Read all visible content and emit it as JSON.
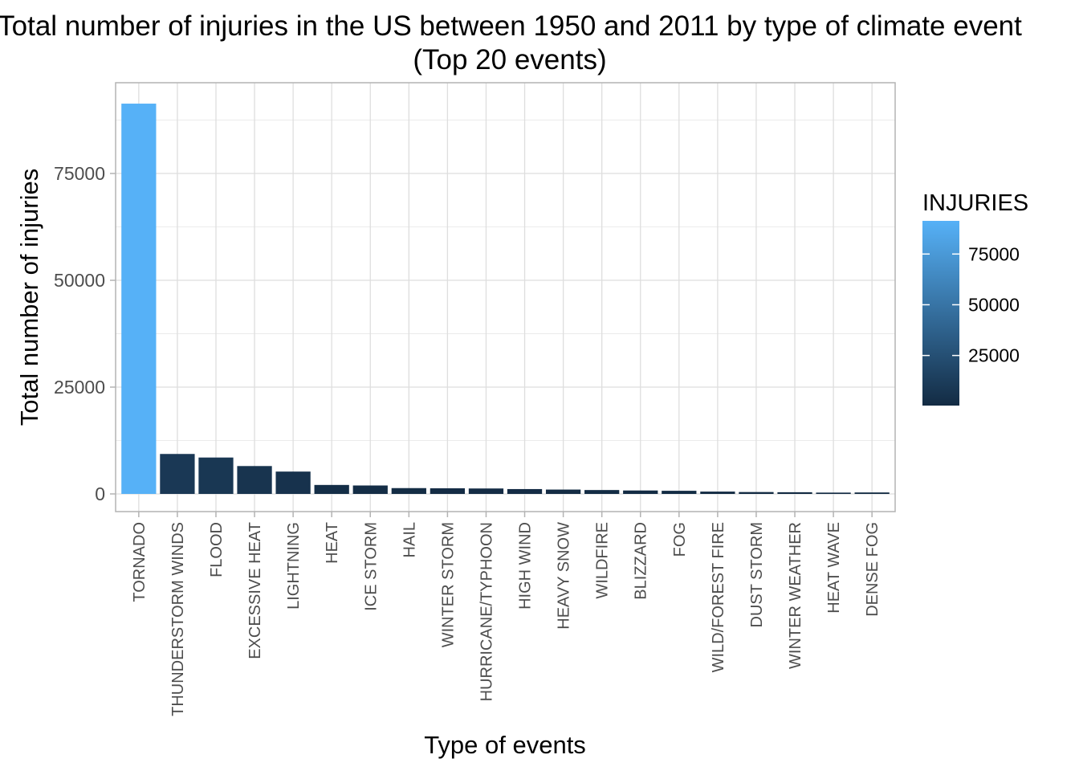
{
  "chart_data": {
    "type": "bar",
    "title": "Total number of injuries in the US between 1950 and 2011 by type of climate event",
    "subtitle": "(Top 20 events)",
    "xlabel": "Type of events",
    "ylabel": "Total number of injuries",
    "categories": [
      "TORNADO",
      "THUNDERSTORM WINDS",
      "FLOOD",
      "EXCESSIVE HEAT",
      "LIGHTNING",
      "HEAT",
      "ICE STORM",
      "HAIL",
      "WINTER STORM",
      "HURRICANE/TYPHOON",
      "HIGH WIND",
      "HEAVY SNOW",
      "WILDFIRE",
      "BLIZZARD",
      "FOG",
      "WILD/FOREST FIRE",
      "DUST STORM",
      "WINTER WEATHER",
      "HEAT WAVE",
      "DENSE FOG"
    ],
    "values": [
      91346,
      9353,
      8519,
      6525,
      5230,
      2100,
      1975,
      1361,
      1321,
      1275,
      1137,
      1021,
      911,
      805,
      734,
      545,
      440,
      398,
      309,
      342
    ],
    "ylim": [
      0,
      95000
    ],
    "yticks": [
      0,
      25000,
      50000,
      75000
    ],
    "ytick_labels": [
      "0",
      "25000",
      "50000",
      "75000"
    ],
    "grid": true,
    "legend": {
      "title": "INJURIES",
      "position": "right",
      "ticks": [
        25000,
        50000,
        75000
      ],
      "tick_labels": [
        "25000",
        "50000",
        "75000"
      ],
      "range": [
        309,
        91346
      ],
      "color_low": "#132B43",
      "color_high": "#56B1F7"
    }
  }
}
